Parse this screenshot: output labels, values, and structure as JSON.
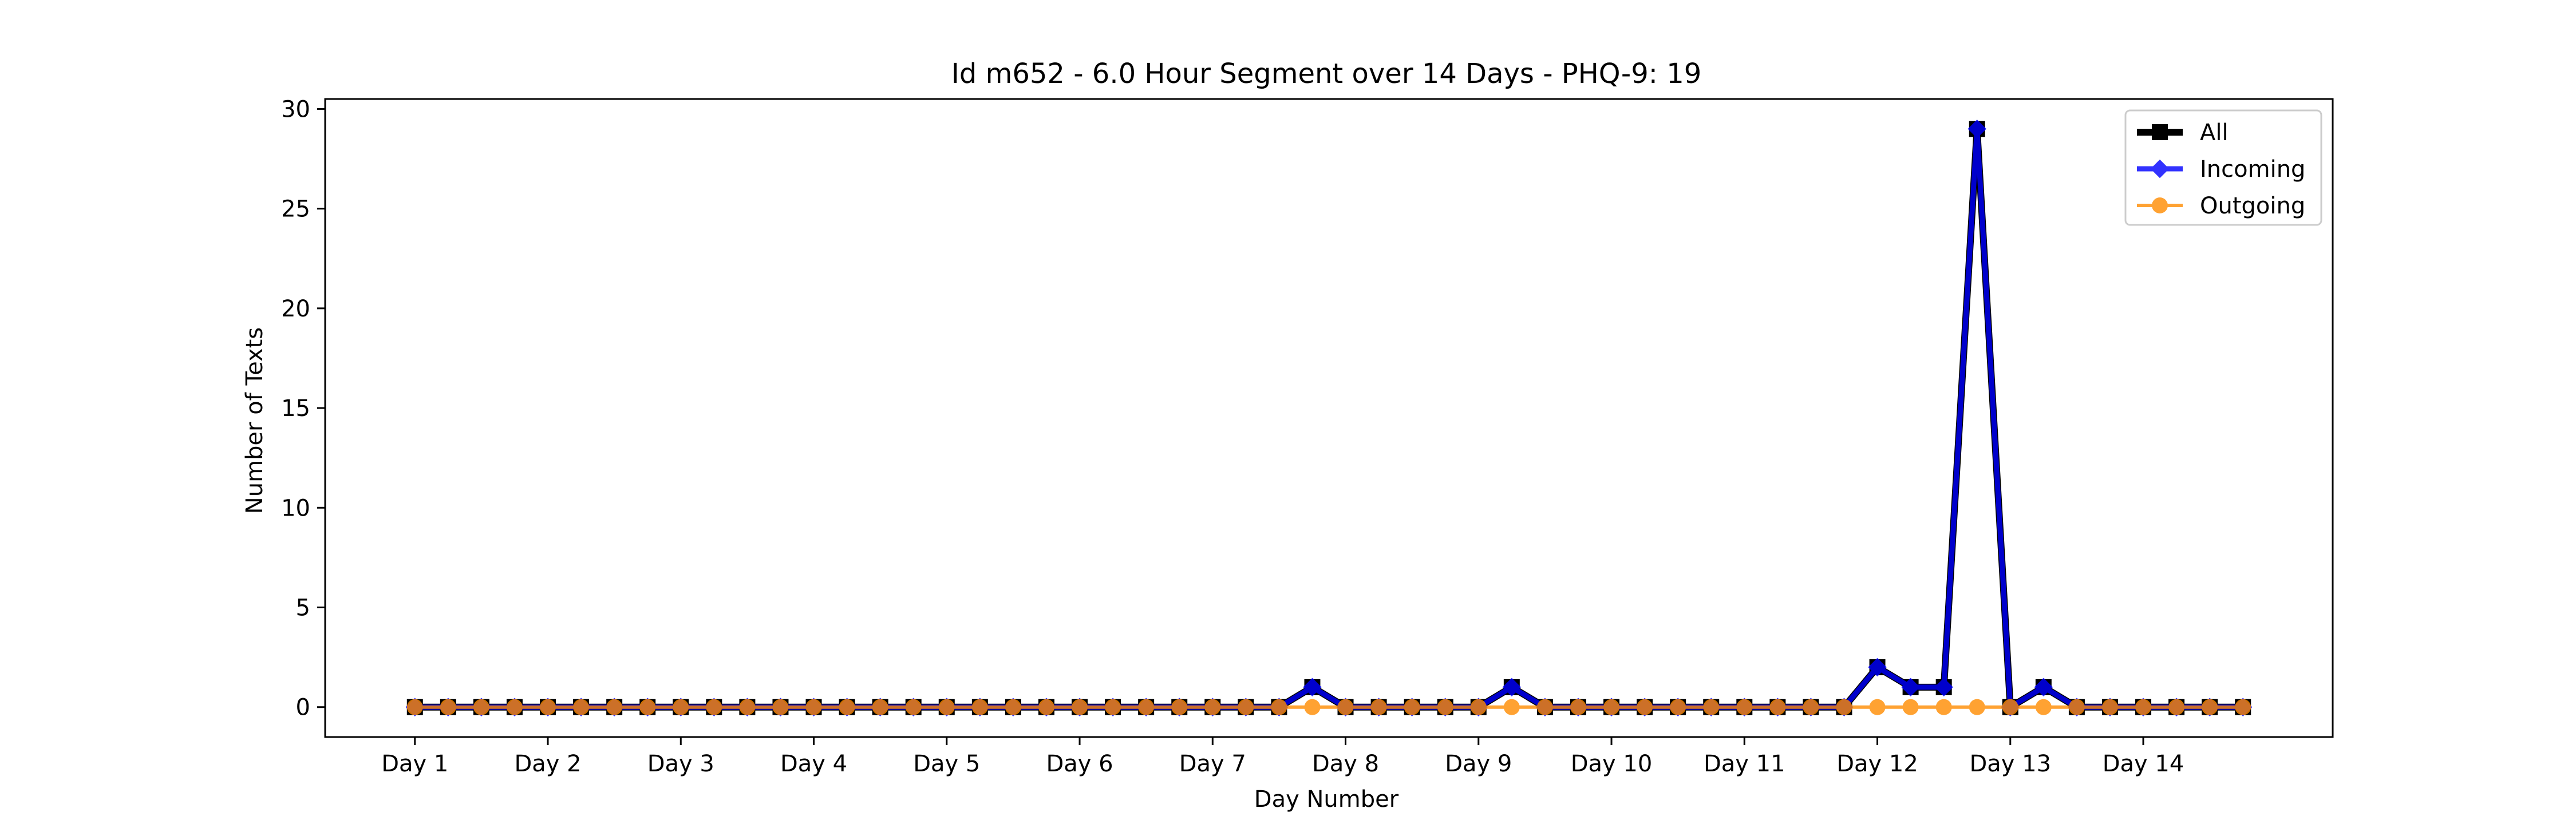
{
  "chart_data": {
    "type": "line",
    "title": "Id m652 - 6.0 Hour Segment over 14 Days - PHQ-9: 19",
    "xlabel": "Day Number",
    "ylabel": "Number of Texts",
    "ylim": [
      -1.5,
      30.5
    ],
    "xlim": [
      -2.7,
      57.7
    ],
    "y_ticks": [
      0,
      5,
      10,
      15,
      20,
      25,
      30
    ],
    "x_ticks": [
      {
        "x": 0,
        "label": "Day 1"
      },
      {
        "x": 4,
        "label": "Day 2"
      },
      {
        "x": 8,
        "label": "Day 3"
      },
      {
        "x": 12,
        "label": "Day 4"
      },
      {
        "x": 16,
        "label": "Day 5"
      },
      {
        "x": 20,
        "label": "Day 6"
      },
      {
        "x": 24,
        "label": "Day 7"
      },
      {
        "x": 28,
        "label": "Day 8"
      },
      {
        "x": 32,
        "label": "Day 9"
      },
      {
        "x": 36,
        "label": "Day 10"
      },
      {
        "x": 40,
        "label": "Day 11"
      },
      {
        "x": 44,
        "label": "Day 12"
      },
      {
        "x": 48,
        "label": "Day 13"
      },
      {
        "x": 52,
        "label": "Day 14"
      }
    ],
    "legend_position": "top-right",
    "grid": false,
    "series": [
      {
        "name": "All",
        "color": "#000000",
        "marker": "square",
        "values": [
          0,
          0,
          0,
          0,
          0,
          0,
          0,
          0,
          0,
          0,
          0,
          0,
          0,
          0,
          0,
          0,
          0,
          0,
          0,
          0,
          0,
          0,
          0,
          0,
          0,
          0,
          0,
          1,
          0,
          0,
          0,
          0,
          0,
          1,
          0,
          0,
          0,
          0,
          0,
          0,
          0,
          0,
          0,
          0,
          2,
          1,
          1,
          29,
          0,
          1,
          0,
          0,
          0,
          0,
          0,
          0
        ]
      },
      {
        "name": "Incoming",
        "color": "#0000ff",
        "marker": "diamond",
        "values": [
          0,
          0,
          0,
          0,
          0,
          0,
          0,
          0,
          0,
          0,
          0,
          0,
          0,
          0,
          0,
          0,
          0,
          0,
          0,
          0,
          0,
          0,
          0,
          0,
          0,
          0,
          0,
          1,
          0,
          0,
          0,
          0,
          0,
          1,
          0,
          0,
          0,
          0,
          0,
          0,
          0,
          0,
          0,
          0,
          2,
          1,
          1,
          29,
          0,
          1,
          0,
          0,
          0,
          0,
          0,
          0
        ]
      },
      {
        "name": "Outgoing",
        "color": "#ff8c00",
        "marker": "circle",
        "values": [
          0,
          0,
          0,
          0,
          0,
          0,
          0,
          0,
          0,
          0,
          0,
          0,
          0,
          0,
          0,
          0,
          0,
          0,
          0,
          0,
          0,
          0,
          0,
          0,
          0,
          0,
          0,
          0,
          0,
          0,
          0,
          0,
          0,
          0,
          0,
          0,
          0,
          0,
          0,
          0,
          0,
          0,
          0,
          0,
          0,
          0,
          0,
          0,
          0,
          0,
          0,
          0,
          0,
          0,
          0,
          0
        ]
      }
    ]
  }
}
